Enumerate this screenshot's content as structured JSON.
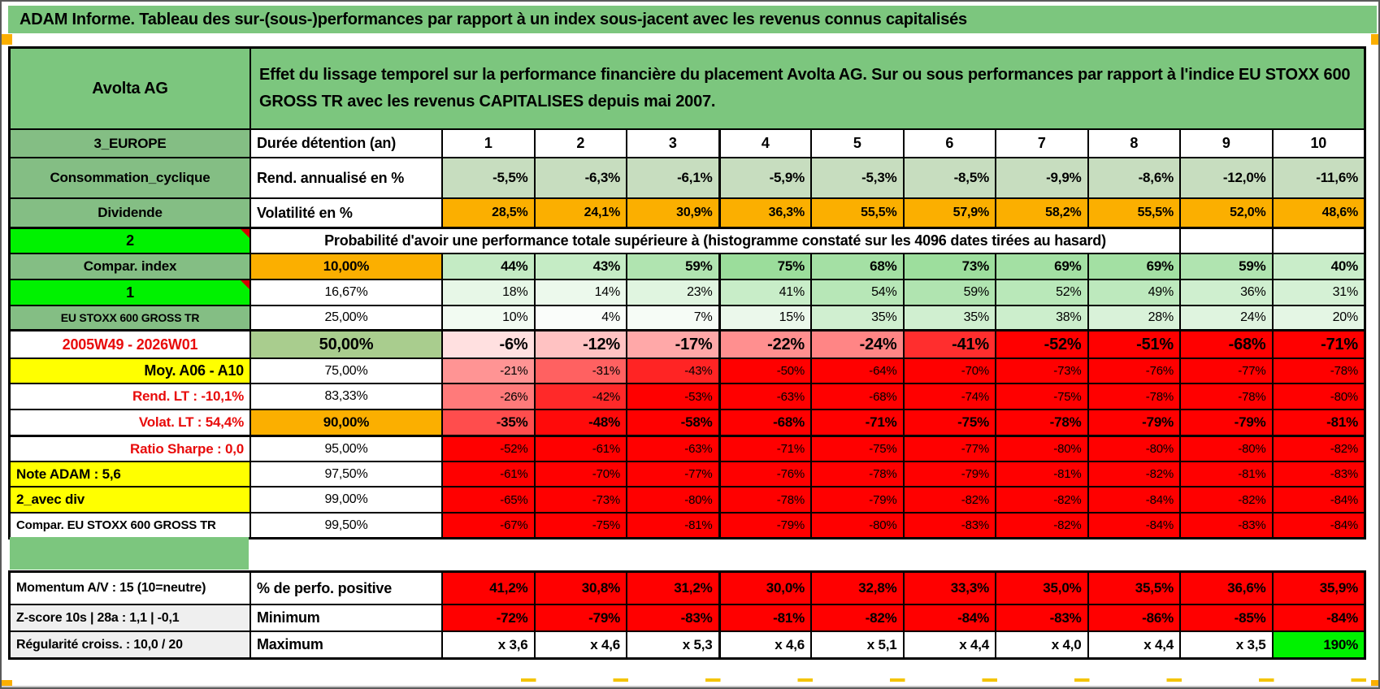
{
  "title": "ADAM Informe. Tableau des sur-(sous-)performances par rapport à un index sous-jacent avec les revenus connus capitalisés",
  "header": {
    "asset": "Avolta AG",
    "description": "Effet du lissage temporel sur la performance financière du placement Avolta AG. Sur ou sous performances par rapport à l'indice EU STOXX 600 GROSS TR avec les revenus CAPITALISES depuis mai 2007."
  },
  "colors": {
    "titleGreen": "#7cc67e",
    "labelGreen": "#84be84",
    "brightGreen": "#00f200",
    "orange": "#fbaf00",
    "yellow": "#ffff00",
    "green50": "#a9cd8e",
    "sage": "#c7ddbf",
    "solidRed": "#ff0000",
    "grayLabel": "#efefef",
    "scaleGreenEnd": "#79d279",
    "redText": "#e80b0b"
  },
  "column_header_row": {
    "left": "3_EUROPE",
    "mid": "Durée détention (an)",
    "columns": [
      "1",
      "2",
      "3",
      "4",
      "5",
      "6",
      "7",
      "8",
      "9",
      "10"
    ]
  },
  "main_rows": [
    {
      "left": "Consommation_cyclique",
      "leftStyle": "green",
      "mid": "Rend. annualisé en %",
      "midStyle": "label",
      "values": [
        "-5,5%",
        "-6,3%",
        "-6,1%",
        "-5,9%",
        "-5,3%",
        "-8,5%",
        "-9,9%",
        "-8,6%",
        "-12,0%",
        "-11,6%"
      ],
      "valueStyle": "sage"
    },
    {
      "left": "Dividende",
      "leftStyle": "green",
      "mid": "Volatilité en %",
      "midStyle": "label",
      "values": [
        "28,5%",
        "24,1%",
        "30,9%",
        "36,3%",
        "55,5%",
        "57,9%",
        "58,2%",
        "55,5%",
        "52,0%",
        "48,6%"
      ],
      "valueStyle": "orange",
      "thickBottom": true
    },
    {
      "left": "2",
      "leftStyle": "bright",
      "comment": true,
      "merged": "Probabilité d'avoir une performance totale supérieure à (histogramme constaté sur les 4096 dates tirées au hasard)",
      "trailingEmpty": 2
    },
    {
      "left": "Compar. index",
      "leftStyle": "green",
      "mid": "10,00%",
      "midStyle": "pctOrange",
      "values": [
        44,
        43,
        59,
        75,
        68,
        73,
        69,
        69,
        59,
        40
      ],
      "valueStyle": "greenscaleBold"
    },
    {
      "left": "1",
      "leftStyle": "bright",
      "comment": true,
      "mid": "16,67%",
      "midStyle": "pct",
      "values": [
        18,
        14,
        23,
        41,
        54,
        59,
        52,
        49,
        36,
        31
      ],
      "valueStyle": "greenscale"
    },
    {
      "left": "EU STOXX 600 GROSS TR",
      "leftStyle": "greensmall",
      "mid": "25,00%",
      "midStyle": "pct",
      "values": [
        10,
        4,
        7,
        15,
        35,
        35,
        38,
        28,
        24,
        20
      ],
      "valueStyle": "greenscale",
      "thickBottom": true
    },
    {
      "left": "2005W49 - 2026W01",
      "leftStyle": "redCenter",
      "mid": "50,00%",
      "midStyle": "pct50",
      "values": [
        -6,
        -12,
        -17,
        -22,
        -24,
        -41,
        -52,
        -51,
        -68,
        -71
      ],
      "valueStyle": "redscaleBig"
    },
    {
      "left": "Moy. A06 - A10",
      "leftStyle": "yellowRight",
      "mid": "75,00%",
      "midStyle": "pct",
      "values": [
        -21,
        -31,
        -43,
        -50,
        -64,
        -70,
        -73,
        -76,
        -77,
        -78
      ],
      "valueStyle": "redscale"
    },
    {
      "left": "Rend. LT :   -10,1%",
      "leftStyle": "redRight",
      "mid": "83,33%",
      "midStyle": "pct",
      "values": [
        -26,
        -42,
        -53,
        -63,
        -68,
        -74,
        -75,
        -78,
        -78,
        -80
      ],
      "valueStyle": "redscale"
    },
    {
      "left": "Volat. LT :   54,4%",
      "leftStyle": "redRight",
      "mid": "90,00%",
      "midStyle": "pctOrange",
      "values": [
        -35,
        -48,
        -58,
        -68,
        -71,
        -75,
        -78,
        -79,
        -79,
        -81
      ],
      "valueStyle": "redscaleBold",
      "thickBottom": true
    },
    {
      "left": "Ratio Sharpe :   0,0",
      "leftStyle": "redRight",
      "mid": "95,00%",
      "midStyle": "pct",
      "values": [
        -52,
        -61,
        -63,
        -71,
        -75,
        -77,
        -80,
        -80,
        -80,
        -82
      ],
      "valueStyle": "redscale"
    },
    {
      "left": "Note ADAM : 5,6",
      "leftStyle": "yellowLeft",
      "mid": "97,50%",
      "midStyle": "pct",
      "values": [
        -61,
        -70,
        -77,
        -76,
        -78,
        -79,
        -81,
        -82,
        -81,
        -83
      ],
      "valueStyle": "redscale"
    },
    {
      "left": "2_avec div",
      "leftStyle": "yellowLeft",
      "mid": "99,00%",
      "midStyle": "pct",
      "values": [
        -65,
        -73,
        -80,
        -78,
        -79,
        -82,
        -82,
        -84,
        -82,
        -84
      ],
      "valueStyle": "redscale"
    },
    {
      "left": "Compar. EU STOXX 600 GROSS TR",
      "leftStyle": "whiteLeft",
      "mid": "99,50%",
      "midStyle": "pct",
      "values": [
        -67,
        -75,
        -81,
        -79,
        -80,
        -83,
        -82,
        -84,
        -83,
        -84
      ],
      "valueStyle": "redscale"
    }
  ],
  "bottom_rows": [
    {
      "left": "Momentum A/V : 15 (10=neutre)",
      "leftStyle": "whiteLeftB",
      "mid": "% de perfo. positive",
      "midStyle": "label",
      "values": [
        "41,2%",
        "30,8%",
        "31,2%",
        "30,0%",
        "32,8%",
        "33,3%",
        "35,0%",
        "35,5%",
        "36,6%",
        "35,9%"
      ],
      "valueStyle": "solidred"
    },
    {
      "left": "Z-score 10s | 28a : 1,1 | -0,1",
      "leftStyle": "grayLeft",
      "mid": "Minimum",
      "midStyle": "label",
      "values": [
        "-72%",
        "-79%",
        "-83%",
        "-81%",
        "-82%",
        "-84%",
        "-83%",
        "-86%",
        "-85%",
        "-84%"
      ],
      "valueStyle": "solidred"
    },
    {
      "left": "Régularité croiss. : 10,0 / 20",
      "leftStyle": "grayLeft",
      "mid": "Maximum",
      "midStyle": "label",
      "values": [
        "x 3,6",
        "x 4,6",
        "x 5,3",
        "x 4,6",
        "x 5,1",
        "x 4,4",
        "x 4,0",
        "x 4,4",
        "x 3,5",
        "190%"
      ],
      "valueStyle": "max",
      "lastGreen": true
    }
  ]
}
